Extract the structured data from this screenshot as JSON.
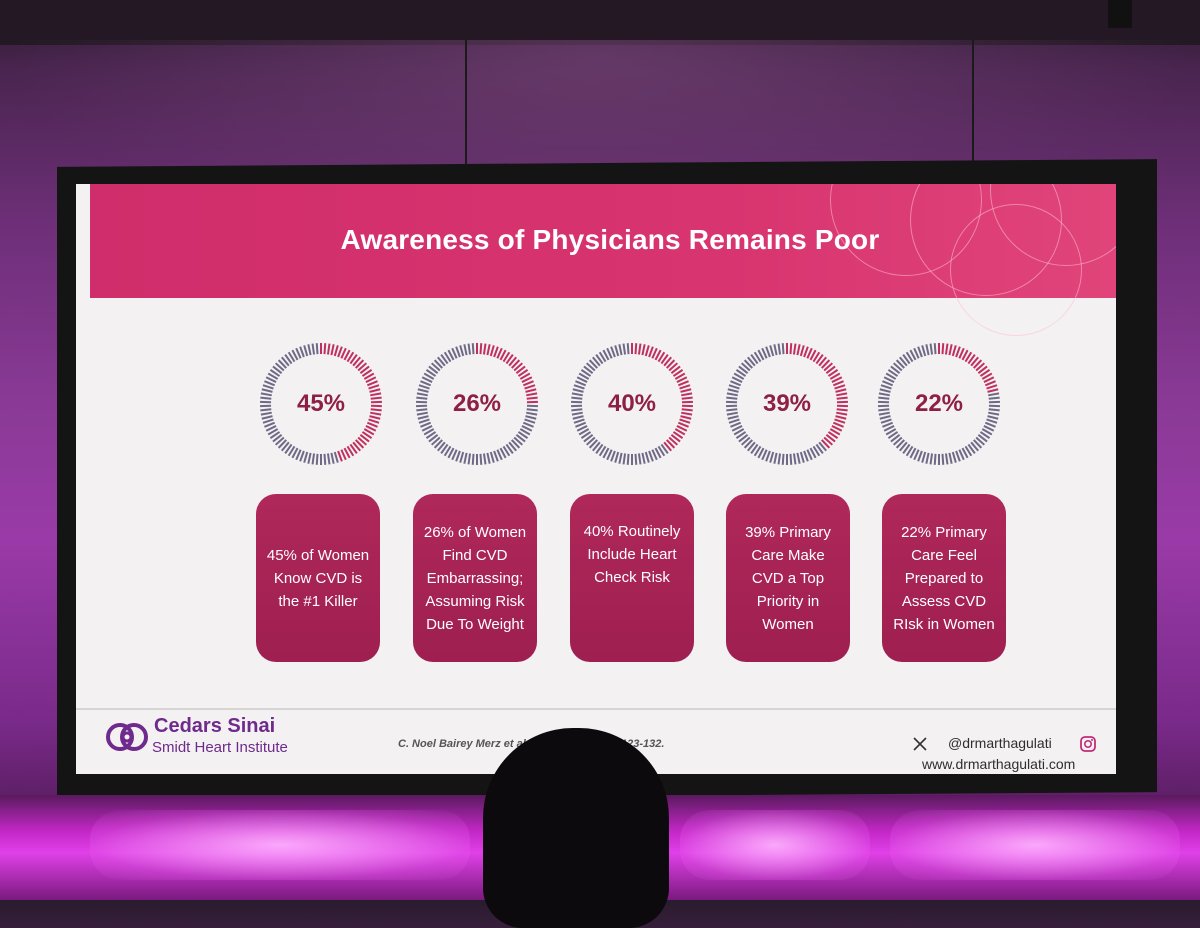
{
  "slide": {
    "title": "Awareness of Physicians Remains Poor",
    "stats": [
      {
        "percent_label": "45%",
        "value": 45,
        "description_lines": [
          "45% of Women",
          "Know CVD is",
          "the #1 Killer"
        ]
      },
      {
        "percent_label": "26%",
        "value": 26,
        "description_lines": [
          "26% of Women",
          "Find CVD",
          "Embarrassing;",
          "Assuming Risk",
          "Due To Weight"
        ]
      },
      {
        "percent_label": "40%",
        "value": 40,
        "description_lines": [
          "40% Routinely",
          "Include Heart",
          "Check Risk"
        ]
      },
      {
        "percent_label": "39%",
        "value": 39,
        "description_lines": [
          "39% Primary",
          "Care Make",
          "CVD a Top",
          "Priority in",
          "Women"
        ]
      },
      {
        "percent_label": "22%",
        "value": 22,
        "description_lines": [
          "22% Primary",
          "Care Feel",
          "Prepared to",
          "Assess CVD",
          "RIsk in Women"
        ]
      }
    ],
    "footer": {
      "logo_name": "Cedars Sinai",
      "logo_subtitle": "Smidt Heart Institute",
      "citation_start": "C. Noel Bairey Merz et al",
      "citation_end": "123-132.",
      "social_handle": "@drmarthagulati",
      "website": "www.drmarthagulati.com",
      "x_icon": "x-logo-icon",
      "instagram_icon": "instagram-icon"
    },
    "colors": {
      "header": "#d8346f",
      "ring_filled": "#c0305f",
      "ring_empty": "#6e6a86",
      "card": "#a8255a",
      "percent_text": "#8e1f45",
      "brand_purple": "#6e2a8c"
    }
  }
}
